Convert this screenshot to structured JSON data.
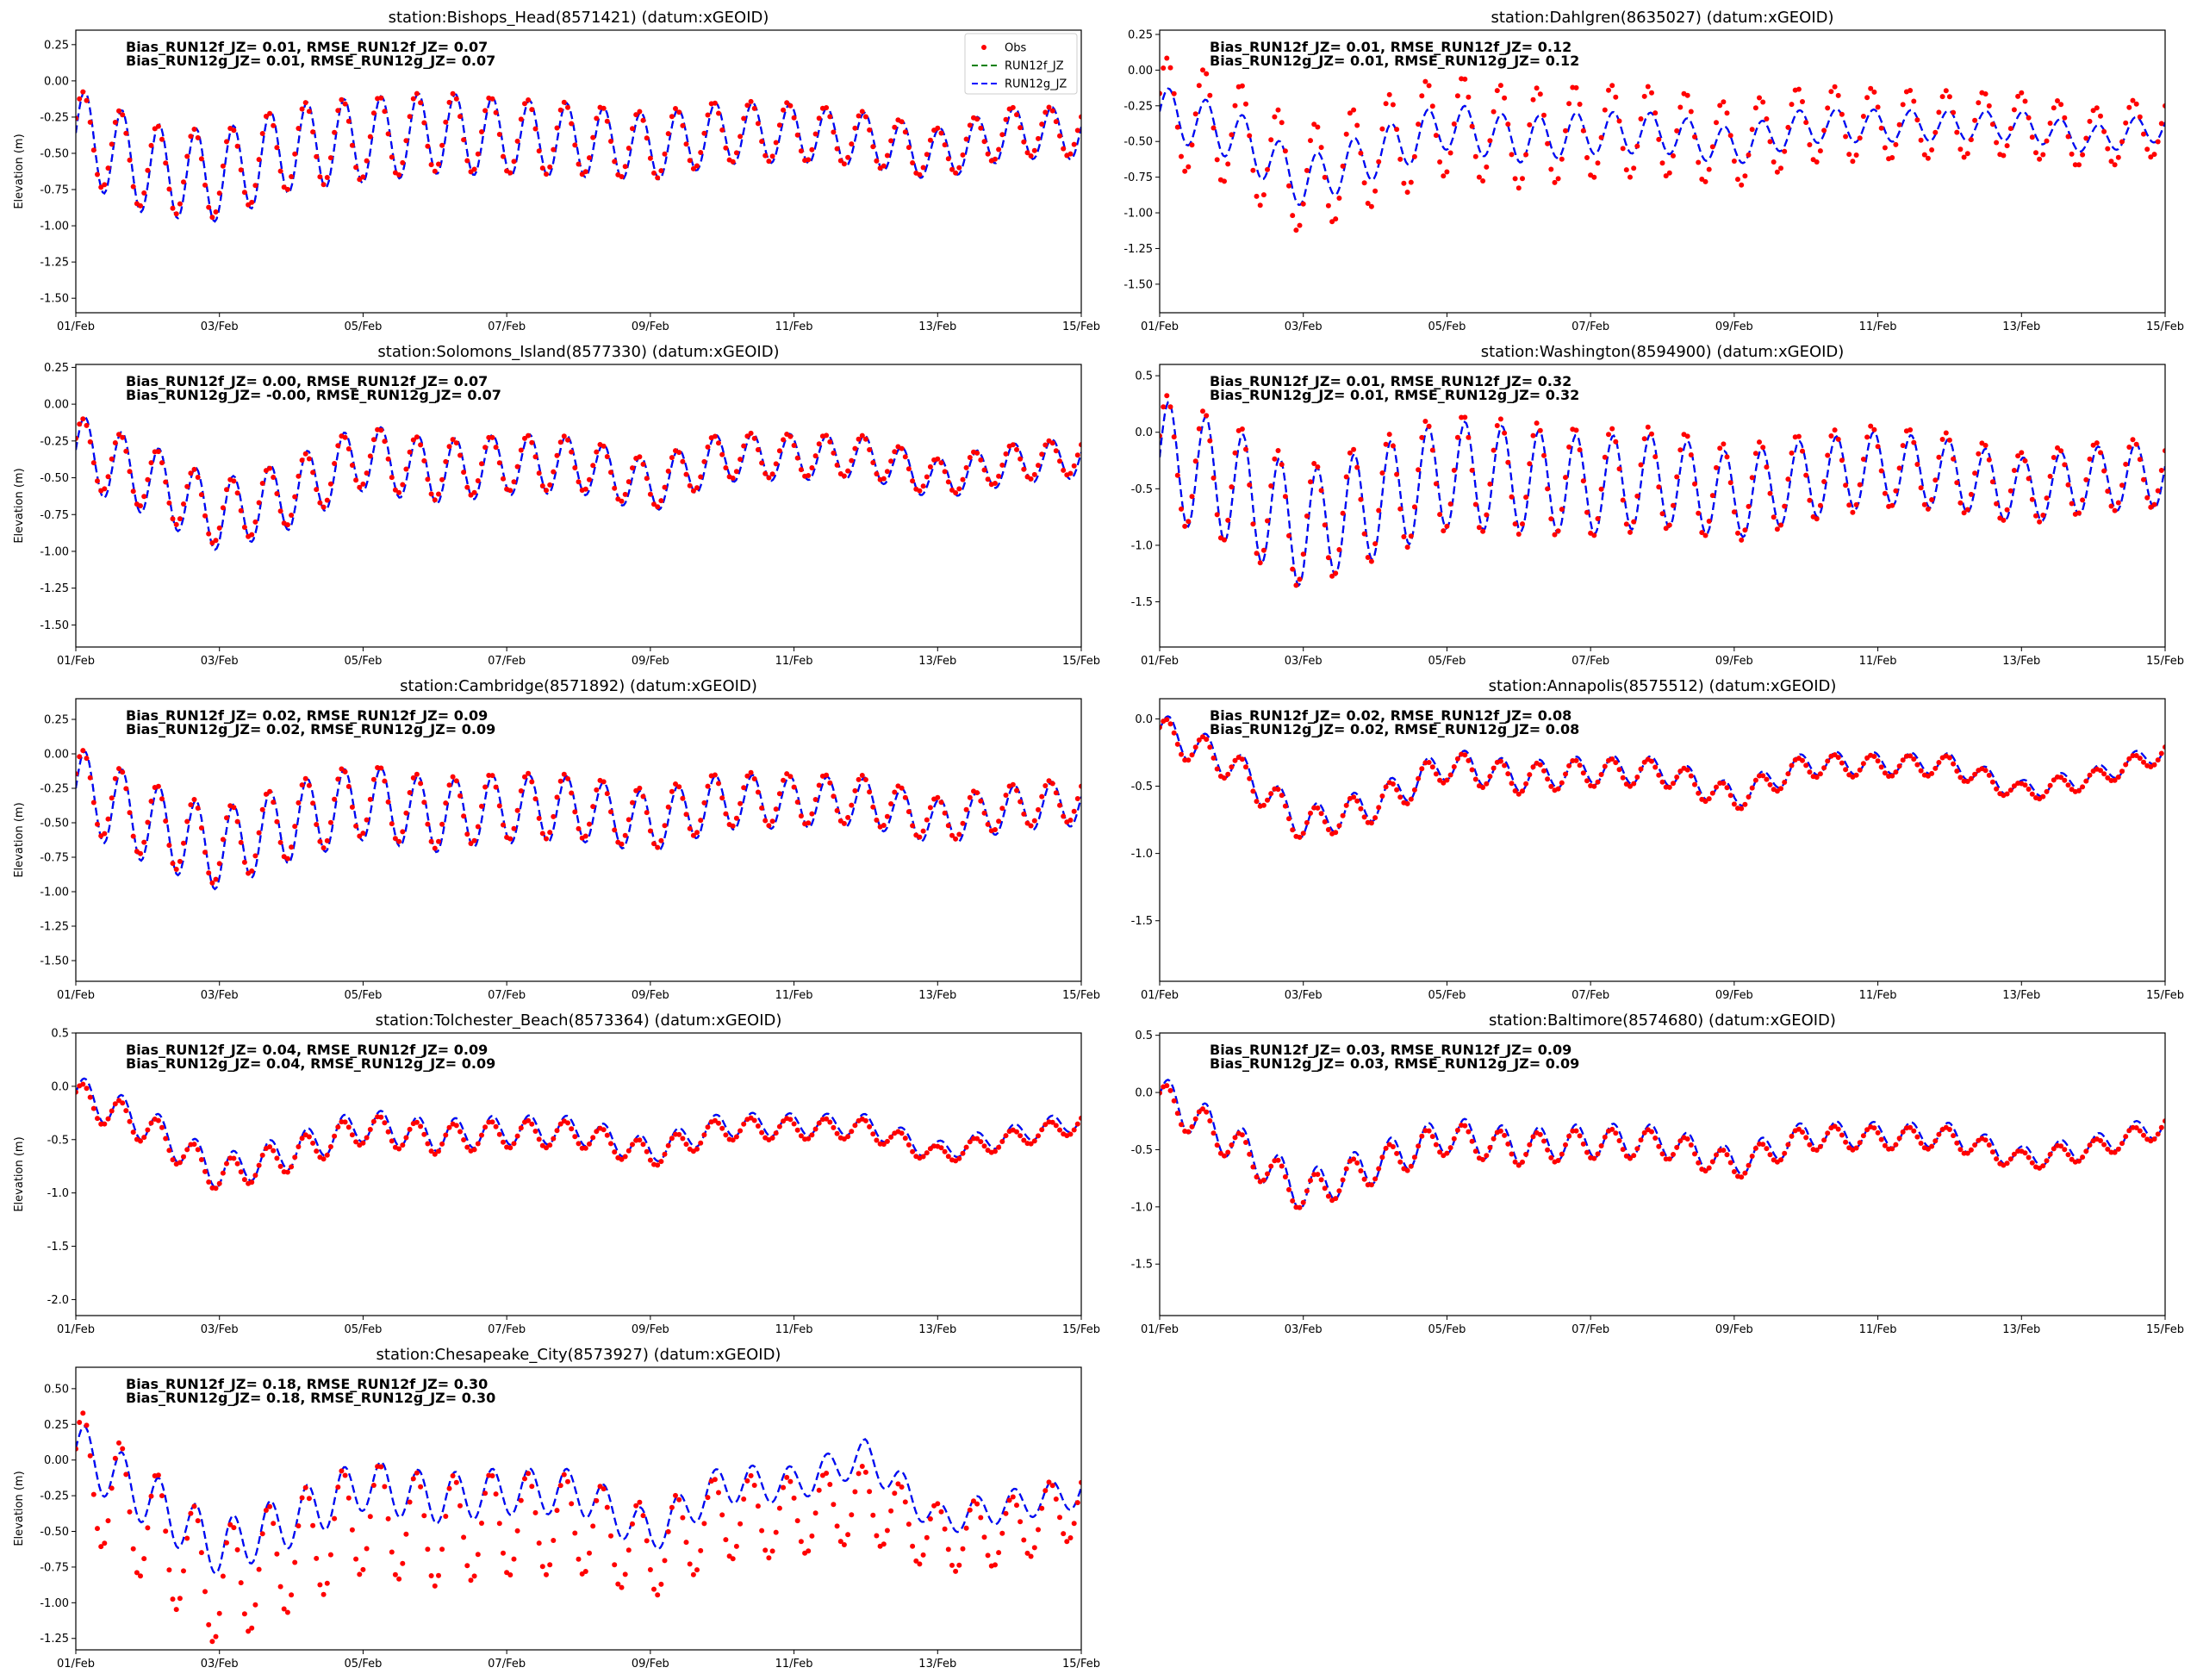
{
  "xaxis_ticks": [
    "01/Feb",
    "03/Feb",
    "05/Feb",
    "07/Feb",
    "09/Feb",
    "11/Feb",
    "13/Feb",
    "15/Feb"
  ],
  "ylabel": "Elevation (m)",
  "series_names": [
    "Obs",
    "RUN12f_JZ",
    "RUN12g_JZ"
  ],
  "colors": {
    "obs": "#ff0000",
    "run12f": "#008000",
    "run12g": "#0000ff"
  },
  "legend_location": "top-right of first panel",
  "chart_data": [
    {
      "type": "line",
      "title": "station:Bishops_Head(8571421) (datum:xGEOID)",
      "xlabel": "",
      "ylabel": "Elevation (m)",
      "xlim": [
        "01/Feb",
        "15/Feb"
      ],
      "ylim": [
        -1.6,
        0.35
      ],
      "yticks": [
        "0.25",
        "0.00",
        "-0.25",
        "-0.50",
        "-0.75",
        "-1.00",
        "-1.25",
        "-1.50"
      ],
      "ytick_values": [
        0.25,
        0.0,
        -0.25,
        -0.5,
        -0.75,
        -1.0,
        -1.25,
        -1.5
      ],
      "stats": [
        "Bias_RUN12f_JZ=  0.01, RMSE_RUN12f_JZ=  0.07",
        "Bias_RUN12g_JZ=  0.01, RMSE_RUN12g_JZ=  0.07"
      ],
      "legend": true,
      "series": [
        {
          "name": "Obs",
          "mean": -0.4,
          "amp": 0.3,
          "trend": [
            0.05,
            -0.2,
            -0.25,
            -0.05,
            0.0,
            0.05,
            0.02,
            0.0,
            -0.05,
            0.05,
            0.05,
            0.0,
            -0.1,
            0.05,
            0.05
          ]
        },
        {
          "name": "RUN12f_JZ",
          "mean": -0.41,
          "amp": 0.32,
          "trend": [
            0.05,
            -0.2,
            -0.25,
            -0.05,
            0.0,
            0.05,
            0.02,
            0.0,
            -0.05,
            0.05,
            0.05,
            0.0,
            -0.1,
            0.05,
            0.05
          ]
        },
        {
          "name": "RUN12g_JZ",
          "mean": -0.41,
          "amp": 0.32,
          "trend": [
            0.05,
            -0.2,
            -0.25,
            -0.05,
            0.0,
            0.05,
            0.02,
            0.0,
            -0.05,
            0.05,
            0.05,
            0.0,
            -0.1,
            0.05,
            0.05
          ]
        }
      ]
    },
    {
      "type": "line",
      "title": "station:Dahlgren(8635027) (datum:xGEOID)",
      "xlabel": "",
      "ylabel": "",
      "xlim": [
        "01/Feb",
        "15/Feb"
      ],
      "ylim": [
        -1.7,
        0.28
      ],
      "yticks": [
        "0.25",
        "0.00",
        "-0.25",
        "-0.50",
        "-0.75",
        "-1.00",
        "-1.25",
        "-1.50"
      ],
      "ytick_values": [
        0.25,
        0.0,
        -0.25,
        -0.5,
        -0.75,
        -1.0,
        -1.25,
        -1.5
      ],
      "stats": [
        "Bias_RUN12f_JZ=  0.01, RMSE_RUN12f_JZ=  0.12",
        "Bias_RUN12g_JZ=  0.01, RMSE_RUN12g_JZ=  0.12"
      ],
      "legend": false,
      "series": [
        {
          "name": "Obs",
          "mean": -0.43,
          "amp": 0.38,
          "trend": [
            0.15,
            0.0,
            -0.35,
            -0.15,
            0.05,
            -0.05,
            0.0,
            0.0,
            -0.1,
            0.05,
            0.05,
            0.05,
            0.05,
            -0.05,
            0.05
          ]
        },
        {
          "name": "RUN12f_JZ",
          "mean": -0.44,
          "amp": 0.18,
          "trend": [
            0.15,
            0.0,
            -0.35,
            -0.15,
            0.05,
            -0.05,
            0.0,
            0.0,
            -0.1,
            0.05,
            0.05,
            0.05,
            0.05,
            -0.05,
            0.05
          ]
        },
        {
          "name": "RUN12g_JZ",
          "mean": -0.44,
          "amp": 0.18,
          "trend": [
            0.15,
            0.0,
            -0.35,
            -0.15,
            0.05,
            -0.05,
            0.0,
            0.0,
            -0.1,
            0.05,
            0.05,
            0.05,
            0.05,
            -0.05,
            0.05
          ]
        }
      ]
    },
    {
      "type": "line",
      "title": "station:Solomons_Island(8577330) (datum:xGEOID)",
      "xlabel": "",
      "ylabel": "Elevation (m)",
      "xlim": [
        "01/Feb",
        "15/Feb"
      ],
      "ylim": [
        -1.65,
        0.27
      ],
      "yticks": [
        "0.25",
        "0.00",
        "-0.25",
        "-0.50",
        "-0.75",
        "-1.00",
        "-1.25",
        "-1.50"
      ],
      "ytick_values": [
        0.25,
        0.0,
        -0.25,
        -0.5,
        -0.75,
        -1.0,
        -1.25,
        -1.5
      ],
      "stats": [
        "Bias_RUN12f_JZ=  0.00, RMSE_RUN12f_JZ=  0.07",
        "Bias_RUN12g_JZ= -0.00, RMSE_RUN12g_JZ=  0.07"
      ],
      "legend": false,
      "series": [
        {
          "name": "Obs",
          "mean": -0.4,
          "amp": 0.22,
          "trend": [
            0.1,
            -0.1,
            -0.35,
            -0.2,
            0.05,
            -0.05,
            0.0,
            0.0,
            -0.15,
            0.05,
            0.05,
            0.05,
            -0.1,
            0.0,
            0.05
          ]
        },
        {
          "name": "RUN12f_JZ",
          "mean": -0.41,
          "amp": 0.25,
          "trend": [
            0.1,
            -0.1,
            -0.35,
            -0.2,
            0.05,
            -0.05,
            0.0,
            0.0,
            -0.15,
            0.05,
            0.05,
            0.05,
            -0.1,
            0.0,
            0.05
          ]
        },
        {
          "name": "RUN12g_JZ",
          "mean": -0.41,
          "amp": 0.25,
          "trend": [
            0.1,
            -0.1,
            -0.35,
            -0.2,
            0.05,
            -0.05,
            0.0,
            0.0,
            -0.15,
            0.05,
            0.05,
            0.05,
            -0.1,
            0.0,
            0.05
          ]
        }
      ]
    },
    {
      "type": "line",
      "title": "station:Washington(8594900) (datum:xGEOID)",
      "xlabel": "",
      "ylabel": "",
      "xlim": [
        "01/Feb",
        "15/Feb"
      ],
      "ylim": [
        -1.9,
        0.6
      ],
      "yticks": [
        "0.5",
        "0.0",
        "-0.5",
        "-1.0",
        "-1.5"
      ],
      "ytick_values": [
        0.5,
        0.0,
        -0.5,
        -1.0,
        -1.5
      ],
      "stats": [
        "Bias_RUN12f_JZ=  0.01, RMSE_RUN12f_JZ=  0.32",
        "Bias_RUN12g_JZ=  0.01, RMSE_RUN12g_JZ=  0.32"
      ],
      "legend": false,
      "series": [
        {
          "name": "Obs",
          "mean": -0.4,
          "amp": 0.55,
          "trend": [
            0.2,
            -0.05,
            -0.45,
            -0.2,
            0.05,
            0.0,
            -0.05,
            0.0,
            -0.15,
            0.0,
            0.1,
            0.05,
            -0.1,
            0.0,
            0.05
          ]
        },
        {
          "name": "RUN12f_JZ",
          "mean": -0.42,
          "amp": 0.52,
          "trend": [
            0.2,
            -0.05,
            -0.45,
            -0.2,
            0.05,
            0.0,
            -0.05,
            0.0,
            -0.15,
            0.0,
            0.1,
            0.05,
            -0.1,
            0.0,
            0.05
          ]
        },
        {
          "name": "RUN12g_JZ",
          "mean": -0.42,
          "amp": 0.52,
          "trend": [
            0.2,
            -0.05,
            -0.45,
            -0.2,
            0.05,
            0.0,
            -0.05,
            0.0,
            -0.15,
            0.0,
            0.1,
            0.05,
            -0.1,
            0.0,
            0.05
          ]
        }
      ]
    },
    {
      "type": "line",
      "title": "station:Cambridge(8571892) (datum:xGEOID)",
      "xlabel": "",
      "ylabel": "Elevation (m)",
      "xlim": [
        "01/Feb",
        "15/Feb"
      ],
      "ylim": [
        -1.65,
        0.4
      ],
      "yticks": [
        "0.25",
        "0.00",
        "-0.25",
        "-0.50",
        "-0.75",
        "-1.00",
        "-1.25",
        "-1.50"
      ],
      "ytick_values": [
        0.25,
        0.0,
        -0.25,
        -0.5,
        -0.75,
        -1.0,
        -1.25,
        -1.5
      ],
      "stats": [
        "Bias_RUN12f_JZ=  0.02, RMSE_RUN12f_JZ=  0.09",
        "Bias_RUN12g_JZ=  0.02, RMSE_RUN12g_JZ=  0.09"
      ],
      "legend": false,
      "series": [
        {
          "name": "Obs",
          "mean": -0.38,
          "amp": 0.28,
          "trend": [
            0.15,
            -0.1,
            -0.3,
            -0.1,
            0.05,
            -0.05,
            0.0,
            0.0,
            -0.1,
            0.05,
            0.05,
            0.05,
            -0.1,
            0.0,
            0.05
          ]
        },
        {
          "name": "RUN12f_JZ",
          "mean": -0.4,
          "amp": 0.3,
          "trend": [
            0.15,
            -0.1,
            -0.3,
            -0.1,
            0.05,
            -0.05,
            0.0,
            0.0,
            -0.1,
            0.05,
            0.05,
            0.05,
            -0.1,
            0.0,
            0.05
          ]
        },
        {
          "name": "RUN12g_JZ",
          "mean": -0.4,
          "amp": 0.3,
          "trend": [
            0.15,
            -0.1,
            -0.3,
            -0.1,
            0.05,
            -0.05,
            0.0,
            0.0,
            -0.1,
            0.05,
            0.05,
            0.05,
            -0.1,
            0.0,
            0.05
          ]
        }
      ]
    },
    {
      "type": "line",
      "title": "station:Annapolis(8575512) (datum:xGEOID)",
      "xlabel": "",
      "ylabel": "",
      "xlim": [
        "01/Feb",
        "15/Feb"
      ],
      "ylim": [
        -1.95,
        0.15
      ],
      "yticks": [
        "0.0",
        "-0.5",
        "-1.0",
        "-1.5"
      ],
      "ytick_values": [
        0.0,
        -0.5,
        -1.0,
        -1.5
      ],
      "stats": [
        "Bias_RUN12f_JZ=  0.02, RMSE_RUN12f_JZ=  0.08",
        "Bias_RUN12g_JZ=  0.02, RMSE_RUN12g_JZ=  0.08"
      ],
      "legend": false,
      "series": [
        {
          "name": "Obs",
          "mean": -0.4,
          "amp": 0.12,
          "trend": [
            0.3,
            0.05,
            -0.4,
            -0.25,
            0.05,
            -0.05,
            0.0,
            0.0,
            -0.2,
            0.05,
            0.05,
            0.05,
            -0.15,
            -0.05,
            0.15
          ]
        },
        {
          "name": "RUN12f_JZ",
          "mean": -0.38,
          "amp": 0.13,
          "trend": [
            0.3,
            0.05,
            -0.4,
            -0.25,
            0.05,
            -0.05,
            0.0,
            0.0,
            -0.2,
            0.05,
            0.05,
            0.05,
            -0.15,
            -0.05,
            0.15
          ]
        },
        {
          "name": "RUN12g_JZ",
          "mean": -0.38,
          "amp": 0.13,
          "trend": [
            0.3,
            0.05,
            -0.4,
            -0.25,
            0.05,
            -0.05,
            0.0,
            0.0,
            -0.2,
            0.05,
            0.05,
            0.05,
            -0.15,
            -0.05,
            0.15
          ]
        }
      ]
    },
    {
      "type": "line",
      "title": "station:Tolchester_Beach(8573364) (datum:xGEOID)",
      "xlabel": "",
      "ylabel": "Elevation (m)",
      "xlim": [
        "01/Feb",
        "15/Feb"
      ],
      "ylim": [
        -2.15,
        0.5
      ],
      "yticks": [
        "0.5",
        "0.0",
        "-0.5",
        "-1.0",
        "-1.5",
        "-2.0"
      ],
      "ytick_values": [
        0.5,
        0.0,
        -0.5,
        -1.0,
        -1.5,
        -2.0
      ],
      "stats": [
        "Bias_RUN12f_JZ=  0.04, RMSE_RUN12f_JZ=  0.09",
        "Bias_RUN12g_JZ=  0.04, RMSE_RUN12g_JZ=  0.09"
      ],
      "legend": false,
      "series": [
        {
          "name": "Obs",
          "mean": -0.45,
          "amp": 0.15,
          "trend": [
            0.35,
            0.05,
            -0.4,
            -0.2,
            0.05,
            -0.05,
            0.0,
            0.0,
            -0.2,
            0.05,
            0.05,
            0.05,
            -0.2,
            -0.05,
            0.1
          ]
        },
        {
          "name": "RUN12f_JZ",
          "mean": -0.41,
          "amp": 0.17,
          "trend": [
            0.35,
            0.05,
            -0.4,
            -0.2,
            0.05,
            -0.05,
            0.0,
            0.0,
            -0.2,
            0.05,
            0.05,
            0.05,
            -0.2,
            -0.05,
            0.1
          ]
        },
        {
          "name": "RUN12g_JZ",
          "mean": -0.41,
          "amp": 0.17,
          "trend": [
            0.35,
            0.05,
            -0.4,
            -0.2,
            0.05,
            -0.05,
            0.0,
            0.0,
            -0.2,
            0.05,
            0.05,
            0.05,
            -0.2,
            -0.05,
            0.1
          ]
        }
      ]
    },
    {
      "type": "line",
      "title": "station:Baltimore(8574680) (datum:xGEOID)",
      "xlabel": "",
      "ylabel": "",
      "xlim": [
        "01/Feb",
        "15/Feb"
      ],
      "ylim": [
        -1.95,
        0.52
      ],
      "yticks": [
        "0.5",
        "0.0",
        "-0.5",
        "-1.0",
        "-1.5"
      ],
      "ytick_values": [
        0.5,
        0.0,
        -0.5,
        -1.0,
        -1.5
      ],
      "stats": [
        "Bias_RUN12f_JZ=  0.03, RMSE_RUN12f_JZ=  0.09",
        "Bias_RUN12g_JZ=  0.03, RMSE_RUN12g_JZ=  0.09"
      ],
      "legend": false,
      "series": [
        {
          "name": "Obs",
          "mean": -0.45,
          "amp": 0.15,
          "trend": [
            0.4,
            0.0,
            -0.45,
            -0.2,
            0.05,
            -0.05,
            0.0,
            0.0,
            -0.2,
            0.05,
            0.05,
            0.05,
            -0.15,
            -0.05,
            0.15
          ]
        },
        {
          "name": "RUN12f_JZ",
          "mean": -0.42,
          "amp": 0.18,
          "trend": [
            0.4,
            0.0,
            -0.45,
            -0.2,
            0.05,
            -0.05,
            0.0,
            0.0,
            -0.2,
            0.05,
            0.05,
            0.05,
            -0.15,
            -0.05,
            0.15
          ]
        },
        {
          "name": "RUN12g_JZ",
          "mean": -0.42,
          "amp": 0.18,
          "trend": [
            0.4,
            0.0,
            -0.45,
            -0.2,
            0.05,
            -0.05,
            0.0,
            0.0,
            -0.2,
            0.05,
            0.05,
            0.05,
            -0.15,
            -0.05,
            0.15
          ]
        }
      ]
    },
    {
      "type": "line",
      "title": "station:Chesapeake_City(8573927) (datum:xGEOID)",
      "xlabel": "",
      "ylabel": "Elevation (m)",
      "xlim": [
        "01/Feb",
        "15/Feb"
      ],
      "ylim": [
        -1.33,
        0.65
      ],
      "yticks": [
        "0.50",
        "0.25",
        "0.00",
        "-0.25",
        "-0.50",
        "-0.75",
        "-1.00",
        "-1.25"
      ],
      "ytick_values": [
        0.5,
        0.25,
        0.0,
        -0.25,
        -0.5,
        -0.75,
        -1.0,
        -1.25
      ],
      "stats": [
        "Bias_RUN12f_JZ=  0.18, RMSE_RUN12f_JZ=  0.30",
        "Bias_RUN12g_JZ=  0.18, RMSE_RUN12g_JZ=  0.30"
      ],
      "legend": false,
      "series": [
        {
          "name": "Obs",
          "mean": -0.45,
          "amp": 0.42,
          "trend": [
            0.4,
            0.0,
            -0.45,
            -0.2,
            0.05,
            -0.05,
            0.0,
            0.0,
            -0.2,
            0.05,
            0.05,
            0.15,
            -0.1,
            -0.05,
            0.15
          ]
        },
        {
          "name": "RUN12f_JZ",
          "mean": -0.27,
          "amp": 0.2,
          "trend": [
            0.35,
            0.0,
            -0.35,
            -0.15,
            0.1,
            0.0,
            0.05,
            0.05,
            -0.25,
            0.1,
            0.1,
            0.3,
            -0.15,
            -0.05,
            0.05
          ]
        },
        {
          "name": "RUN12g_JZ",
          "mean": -0.27,
          "amp": 0.2,
          "trend": [
            0.35,
            0.0,
            -0.35,
            -0.15,
            0.1,
            0.0,
            0.05,
            0.05,
            -0.25,
            0.1,
            0.1,
            0.3,
            -0.15,
            -0.05,
            0.05
          ]
        }
      ]
    }
  ]
}
